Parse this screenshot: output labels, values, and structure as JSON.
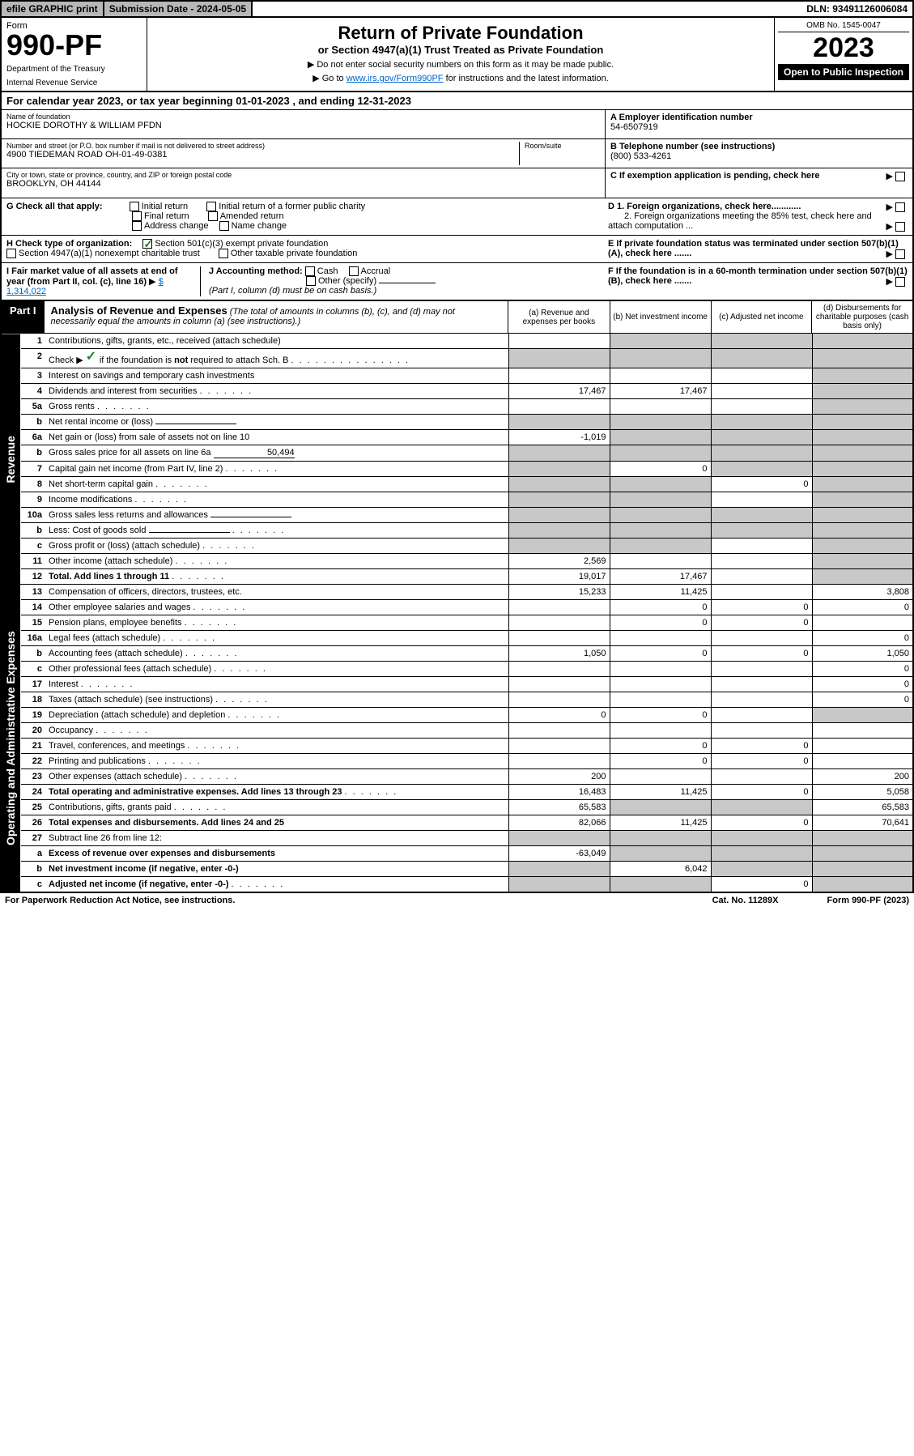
{
  "topbar": {
    "efile": "efile GRAPHIC print",
    "subdate_label": "Submission Date - 2024-05-05",
    "dln": "DLN: 93491126006084"
  },
  "header": {
    "form_label": "Form",
    "form_number": "990-PF",
    "dept": "Department of the Treasury",
    "irs": "Internal Revenue Service",
    "title": "Return of Private Foundation",
    "subtitle": "or Section 4947(a)(1) Trust Treated as Private Foundation",
    "instr1": "▶ Do not enter social security numbers on this form as it may be made public.",
    "instr2a": "▶ Go to ",
    "instr2_link": "www.irs.gov/Form990PF",
    "instr2b": " for instructions and the latest information.",
    "omb": "OMB No. 1545-0047",
    "year": "2023",
    "open": "Open to Public Inspection"
  },
  "cal_year": "For calendar year 2023, or tax year beginning 01-01-2023            , and ending 12-31-2023",
  "info": {
    "name_label": "Name of foundation",
    "name": "HOCKIE DOROTHY & WILLIAM PFDN",
    "addr_label": "Number and street (or P.O. box number if mail is not delivered to street address)",
    "addr": "4900 TIEDEMAN ROAD OH-01-49-0381",
    "room_label": "Room/suite",
    "city_label": "City or town, state or province, country, and ZIP or foreign postal code",
    "city": "BROOKLYN, OH  44144",
    "a_label": "A Employer identification number",
    "a_val": "54-6507919",
    "b_label": "B Telephone number (see instructions)",
    "b_val": "(800) 533-4261",
    "c_label": "C If exemption application is pending, check here",
    "d1": "D 1. Foreign organizations, check here............",
    "d2": "2. Foreign organizations meeting the 85% test, check here and attach computation ...",
    "e_label": "E  If private foundation status was terminated under section 507(b)(1)(A), check here .......",
    "f_label": "F  If the foundation is in a 60-month termination under section 507(b)(1)(B), check here .......",
    "g_label": "G Check all that apply:",
    "g_opts": [
      "Initial return",
      "Initial return of a former public charity",
      "Final return",
      "Amended return",
      "Address change",
      "Name change"
    ],
    "h_label": "H Check type of organization:",
    "h_opt1": "Section 501(c)(3) exempt private foundation",
    "h_opt2": "Section 4947(a)(1) nonexempt charitable trust",
    "h_opt3": "Other taxable private foundation",
    "i_label": "I Fair market value of all assets at end of year (from Part II, col. (c), line 16)",
    "i_val": "$  1,314,022",
    "j_label": "J Accounting method:",
    "j_cash": "Cash",
    "j_accrual": "Accrual",
    "j_other": "Other (specify)",
    "j_note": "(Part I, column (d) must be on cash basis.)"
  },
  "part1": {
    "tag": "Part I",
    "title": "Analysis of Revenue and Expenses",
    "title_note": " (The total of amounts in columns (b), (c), and (d) may not necessarily equal the amounts in column (a) (see instructions).)",
    "col_a": "(a)  Revenue and expenses per books",
    "col_b": "(b)  Net investment income",
    "col_c": "(c)  Adjusted net income",
    "col_d": "(d)  Disbursements for charitable purposes (cash basis only)"
  },
  "side": {
    "revenue": "Revenue",
    "expenses": "Operating and Administrative Expenses"
  },
  "rows": [
    {
      "n": "1",
      "d": "Contributions, gifts, grants, etc., received (attach schedule)",
      "a": "",
      "b": "grey",
      "c": "grey",
      "dd": "grey"
    },
    {
      "n": "2",
      "d": "Check ▶ ✓ if the foundation is not required to attach Sch. B",
      "dots": true,
      "a": "grey",
      "b": "grey",
      "c": "grey",
      "dd": "grey"
    },
    {
      "n": "3",
      "d": "Interest on savings and temporary cash investments",
      "a": "",
      "b": "",
      "c": "",
      "dd": "grey"
    },
    {
      "n": "4",
      "d": "Dividends and interest from securities",
      "dots": true,
      "a": "17,467",
      "b": "17,467",
      "c": "",
      "dd": "grey"
    },
    {
      "n": "5a",
      "d": "Gross rents",
      "dots": true,
      "a": "",
      "b": "",
      "c": "",
      "dd": "grey"
    },
    {
      "n": "b",
      "d": "Net rental income or (loss)",
      "inline": true,
      "a": "grey",
      "b": "grey",
      "c": "grey",
      "dd": "grey"
    },
    {
      "n": "6a",
      "d": "Net gain or (loss) from sale of assets not on line 10",
      "a": "-1,019",
      "b": "grey",
      "c": "grey",
      "dd": "grey"
    },
    {
      "n": "b",
      "d": "Gross sales price for all assets on line 6a",
      "inline": "50,494",
      "a": "grey",
      "b": "grey",
      "c": "grey",
      "dd": "grey"
    },
    {
      "n": "7",
      "d": "Capital gain net income (from Part IV, line 2)",
      "dots": true,
      "a": "grey",
      "b": "0",
      "c": "grey",
      "dd": "grey"
    },
    {
      "n": "8",
      "d": "Net short-term capital gain",
      "dots": true,
      "a": "grey",
      "b": "grey",
      "c": "0",
      "dd": "grey"
    },
    {
      "n": "9",
      "d": "Income modifications",
      "dots": true,
      "a": "grey",
      "b": "grey",
      "c": "",
      "dd": "grey"
    },
    {
      "n": "10a",
      "d": "Gross sales less returns and allowances",
      "inline": true,
      "a": "grey",
      "b": "grey",
      "c": "grey",
      "dd": "grey"
    },
    {
      "n": "b",
      "d": "Less: Cost of goods sold",
      "dots": true,
      "inline": true,
      "a": "grey",
      "b": "grey",
      "c": "grey",
      "dd": "grey"
    },
    {
      "n": "c",
      "d": "Gross profit or (loss) (attach schedule)",
      "dots": true,
      "a": "grey",
      "b": "grey",
      "c": "",
      "dd": "grey"
    },
    {
      "n": "11",
      "d": "Other income (attach schedule)",
      "dots": true,
      "a": "2,569",
      "b": "",
      "c": "",
      "dd": "grey"
    },
    {
      "n": "12",
      "d": "Total. Add lines 1 through 11",
      "bold": true,
      "dots": true,
      "a": "19,017",
      "b": "17,467",
      "c": "",
      "dd": "grey"
    },
    {
      "n": "13",
      "d": "Compensation of officers, directors, trustees, etc.",
      "a": "15,233",
      "b": "11,425",
      "c": "",
      "dd": "3,808"
    },
    {
      "n": "14",
      "d": "Other employee salaries and wages",
      "dots": true,
      "a": "",
      "b": "0",
      "c": "0",
      "dd": "0"
    },
    {
      "n": "15",
      "d": "Pension plans, employee benefits",
      "dots": true,
      "a": "",
      "b": "0",
      "c": "0",
      "dd": ""
    },
    {
      "n": "16a",
      "d": "Legal fees (attach schedule)",
      "dots": true,
      "a": "",
      "b": "",
      "c": "",
      "dd": "0"
    },
    {
      "n": "b",
      "d": "Accounting fees (attach schedule)",
      "dots": true,
      "a": "1,050",
      "b": "0",
      "c": "0",
      "dd": "1,050"
    },
    {
      "n": "c",
      "d": "Other professional fees (attach schedule)",
      "dots": true,
      "a": "",
      "b": "",
      "c": "",
      "dd": "0"
    },
    {
      "n": "17",
      "d": "Interest",
      "dots": true,
      "a": "",
      "b": "",
      "c": "",
      "dd": "0"
    },
    {
      "n": "18",
      "d": "Taxes (attach schedule) (see instructions)",
      "dots": true,
      "a": "",
      "b": "",
      "c": "",
      "dd": "0"
    },
    {
      "n": "19",
      "d": "Depreciation (attach schedule) and depletion",
      "dots": true,
      "a": "0",
      "b": "0",
      "c": "",
      "dd": "grey"
    },
    {
      "n": "20",
      "d": "Occupancy",
      "dots": true,
      "a": "",
      "b": "",
      "c": "",
      "dd": ""
    },
    {
      "n": "21",
      "d": "Travel, conferences, and meetings",
      "dots": true,
      "a": "",
      "b": "0",
      "c": "0",
      "dd": ""
    },
    {
      "n": "22",
      "d": "Printing and publications",
      "dots": true,
      "a": "",
      "b": "0",
      "c": "0",
      "dd": ""
    },
    {
      "n": "23",
      "d": "Other expenses (attach schedule)",
      "dots": true,
      "a": "200",
      "b": "",
      "c": "",
      "dd": "200"
    },
    {
      "n": "24",
      "d": "Total operating and administrative expenses. Add lines 13 through 23",
      "bold": true,
      "dots": true,
      "a": "16,483",
      "b": "11,425",
      "c": "0",
      "dd": "5,058"
    },
    {
      "n": "25",
      "d": "Contributions, gifts, grants paid",
      "dots": true,
      "a": "65,583",
      "b": "grey",
      "c": "grey",
      "dd": "65,583"
    },
    {
      "n": "26",
      "d": "Total expenses and disbursements. Add lines 24 and 25",
      "bold": true,
      "a": "82,066",
      "b": "11,425",
      "c": "0",
      "dd": "70,641"
    },
    {
      "n": "27",
      "d": "Subtract line 26 from line 12:",
      "a": "grey",
      "b": "grey",
      "c": "grey",
      "dd": "grey"
    },
    {
      "n": "a",
      "d": "Excess of revenue over expenses and disbursements",
      "bold": true,
      "a": "-63,049",
      "b": "grey",
      "c": "grey",
      "dd": "grey"
    },
    {
      "n": "b",
      "d": "Net investment income (if negative, enter -0-)",
      "bold": true,
      "a": "grey",
      "b": "6,042",
      "c": "grey",
      "dd": "grey"
    },
    {
      "n": "c",
      "d": "Adjusted net income (if negative, enter -0-)",
      "bold": true,
      "dots": true,
      "a": "grey",
      "b": "grey",
      "c": "0",
      "dd": "grey"
    }
  ],
  "footer": {
    "left": "For Paperwork Reduction Act Notice, see instructions.",
    "mid": "Cat. No. 11289X",
    "right": "Form 990-PF (2023)"
  },
  "colors": {
    "grey": "#c8c8c8",
    "blue": "#c6d4e5",
    "link": "#0066cc",
    "green": "#1a7f37"
  }
}
